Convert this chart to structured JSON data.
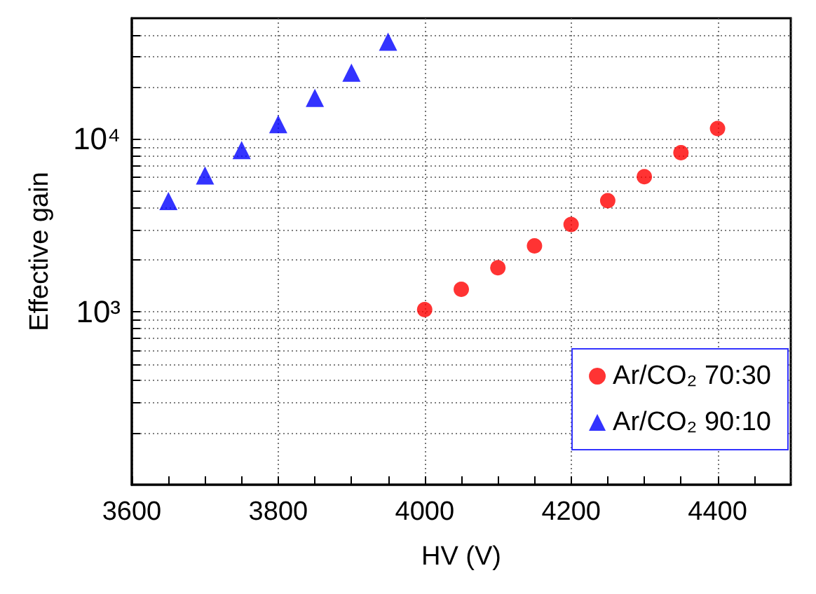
{
  "chart_data": {
    "type": "scatter",
    "xlabel": "HV (V)",
    "ylabel": "Effective gain",
    "log": "y",
    "grid": true,
    "legend": "bottom right",
    "xlim": [
      3600,
      4500
    ],
    "ylim": [
      100,
      50000
    ],
    "xticks": [
      3600,
      {
        "value": 3650,
        "label": null
      },
      {
        "value": 3700,
        "label": null
      },
      {
        "value": 3750,
        "label": null
      },
      3800,
      {
        "value": 3850,
        "label": null
      },
      {
        "value": 3900,
        "label": null
      },
      {
        "value": 3950,
        "label": null
      },
      4000,
      {
        "value": 4050,
        "label": null
      },
      {
        "value": 4100,
        "label": null
      },
      {
        "value": 4150,
        "label": null
      },
      4200,
      {
        "value": 4250,
        "label": null
      },
      {
        "value": 4300,
        "label": null
      },
      {
        "value": 4350,
        "label": null
      },
      4400,
      {
        "value": 4450,
        "label": null
      }
    ],
    "yticks": [
      {
        "value": 200,
        "label": null
      },
      {
        "value": 300,
        "label": null
      },
      {
        "value": 400,
        "label": null
      },
      {
        "value": 500,
        "label": null
      },
      {
        "value": 600,
        "label": null
      },
      {
        "value": 700,
        "label": null
      },
      {
        "value": 800,
        "label": null
      },
      {
        "value": 900,
        "label": null
      },
      {
        "value": 1000,
        "label": "10³"
      },
      {
        "value": 2000,
        "label": null
      },
      {
        "value": 3000,
        "label": null
      },
      {
        "value": 4000,
        "label": null
      },
      {
        "value": 5000,
        "label": null
      },
      {
        "value": 6000,
        "label": null
      },
      {
        "value": 7000,
        "label": null
      },
      {
        "value": 8000,
        "label": null
      },
      {
        "value": 9000,
        "label": null
      },
      {
        "value": 10000,
        "label": "10⁴"
      },
      {
        "value": 20000,
        "label": null
      },
      {
        "value": 30000,
        "label": null
      },
      {
        "value": 40000,
        "label": null
      }
    ],
    "series": [
      {
        "name": "Ar/CO₂ 70:30",
        "color": "#ff0000",
        "marker": "circle",
        "x": [
          4000,
          4050,
          4100,
          4150,
          4200,
          4250,
          4300,
          4350,
          4400
        ],
        "values": [
          1030,
          1350,
          1800,
          2410,
          3200,
          4400,
          6050,
          8340,
          11500
        ]
      },
      {
        "name": "Ar/CO₂ 90:10",
        "color": "#0000ff",
        "marker": "triangle",
        "x": [
          3650,
          3700,
          3750,
          3800,
          3850,
          3900,
          3950
        ],
        "values": [
          4380,
          6160,
          8630,
          12200,
          17300,
          24200,
          36600
        ]
      }
    ]
  }
}
